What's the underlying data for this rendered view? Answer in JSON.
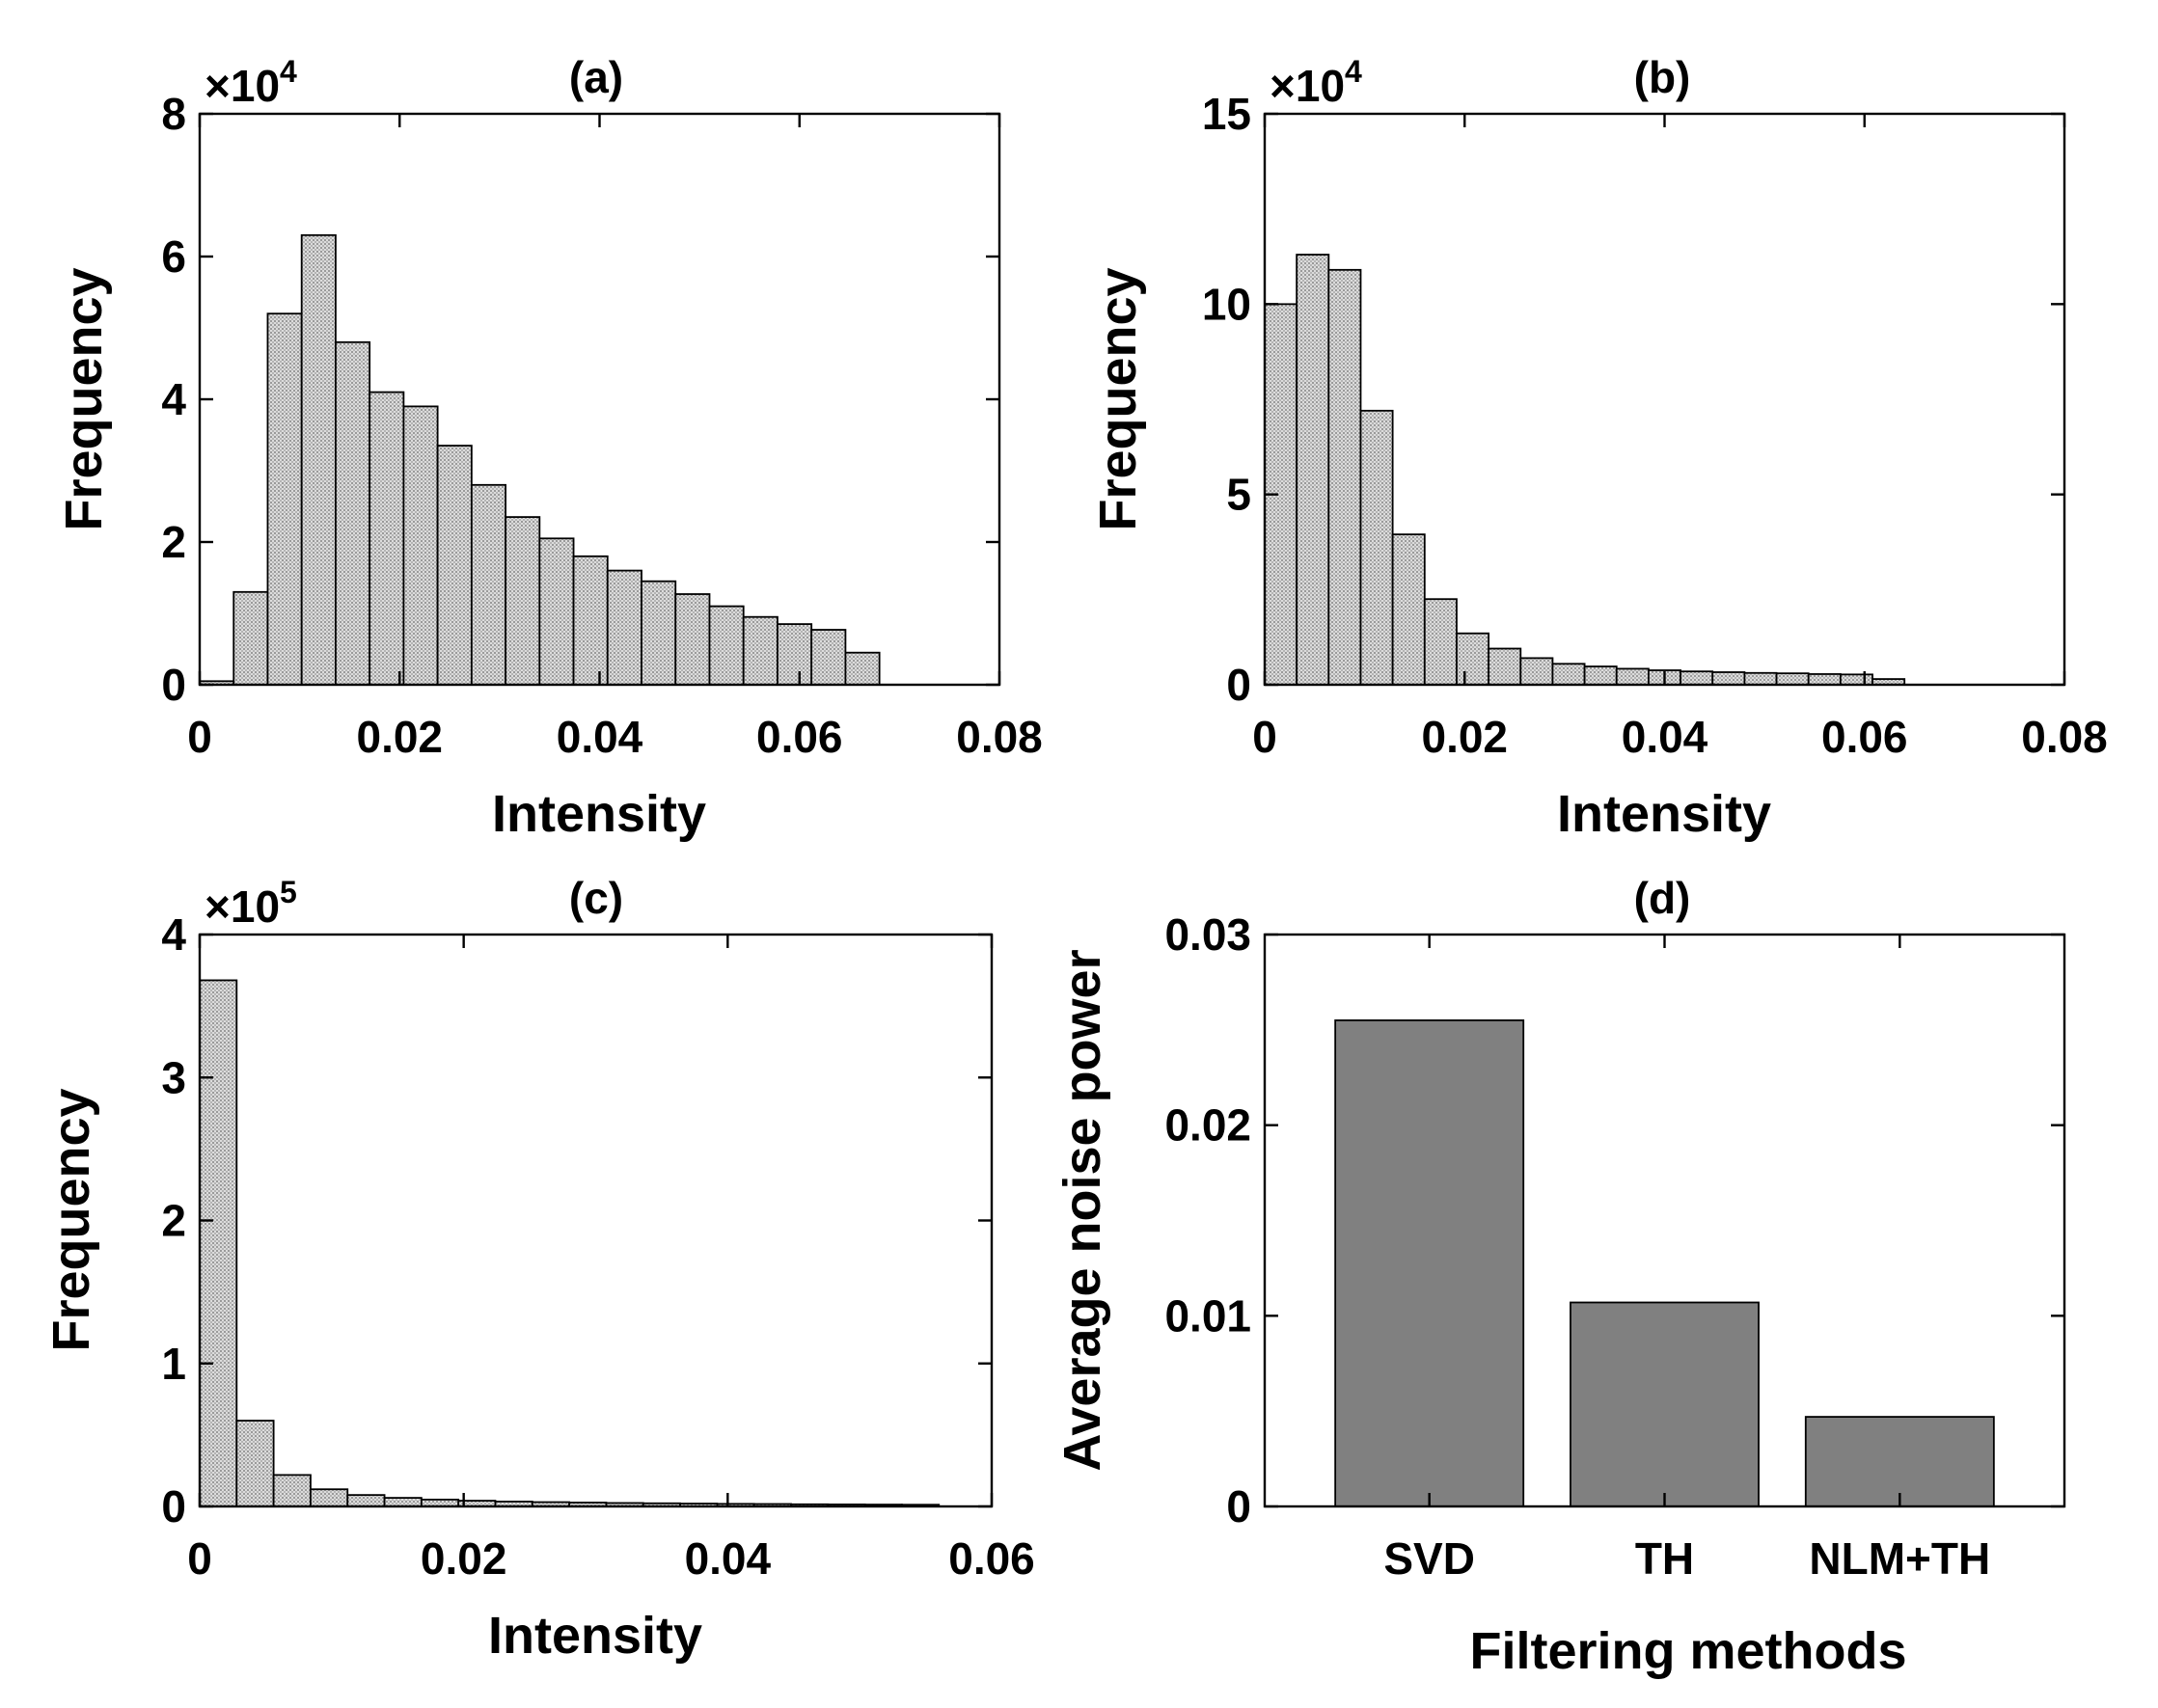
{
  "chart_data": [
    {
      "id": "a",
      "type": "bar",
      "title": "(a)",
      "xlabel": "Intensity",
      "ylabel": "Frequency",
      "exponent": "×10",
      "exponent_power": "4",
      "xlim": [
        0,
        0.08
      ],
      "ylim": [
        0,
        8
      ],
      "xticks": [
        0,
        0.02,
        0.04,
        0.06,
        0.08
      ],
      "xtick_labels": [
        "0",
        "0.02",
        "0.04",
        "0.06",
        "0.08"
      ],
      "yticks": [
        0,
        2,
        4,
        6,
        8
      ],
      "ytick_labels": [
        "0",
        "2",
        "4",
        "6",
        "8"
      ],
      "bin_start": 0.0,
      "bin_width": 0.0034,
      "values": [
        0.05,
        1.3,
        5.2,
        6.3,
        4.8,
        4.1,
        3.9,
        3.35,
        2.8,
        2.35,
        2.05,
        1.8,
        1.6,
        1.45,
        1.27,
        1.1,
        0.95,
        0.85,
        0.77,
        0.45
      ]
    },
    {
      "id": "b",
      "type": "bar",
      "title": "(b)",
      "xlabel": "Intensity",
      "ylabel": "Frequency",
      "exponent": "×10",
      "exponent_power": "4",
      "xlim": [
        0,
        0.08
      ],
      "ylim": [
        0,
        15
      ],
      "xticks": [
        0,
        0.02,
        0.04,
        0.06,
        0.08
      ],
      "xtick_labels": [
        "0",
        "0.02",
        "0.04",
        "0.06",
        "0.08"
      ],
      "yticks": [
        0,
        5,
        10,
        15
      ],
      "ytick_labels": [
        "0",
        "5",
        "10",
        "15"
      ],
      "bin_start": 0.0,
      "bin_width": 0.0032,
      "values": [
        10.0,
        11.3,
        10.9,
        7.2,
        3.95,
        2.25,
        1.35,
        0.95,
        0.7,
        0.55,
        0.48,
        0.42,
        0.38,
        0.35,
        0.33,
        0.31,
        0.3,
        0.28,
        0.27,
        0.15
      ]
    },
    {
      "id": "c",
      "type": "bar",
      "title": "(c)",
      "xlabel": "Intensity",
      "ylabel": "Frequency",
      "exponent": "×10",
      "exponent_power": "5",
      "xlim": [
        0,
        0.06
      ],
      "ylim": [
        0,
        4
      ],
      "xticks": [
        0,
        0.02,
        0.04,
        0.06
      ],
      "xtick_labels": [
        "0",
        "0.02",
        "0.04",
        "0.06"
      ],
      "yticks": [
        0,
        1,
        2,
        3,
        4
      ],
      "ytick_labels": [
        "0",
        "1",
        "2",
        "3",
        "4"
      ],
      "bin_start": 0.0,
      "bin_width": 0.0028,
      "values": [
        3.68,
        0.6,
        0.22,
        0.12,
        0.08,
        0.06,
        0.048,
        0.04,
        0.034,
        0.03,
        0.027,
        0.024,
        0.022,
        0.02,
        0.018,
        0.017,
        0.015,
        0.014,
        0.013,
        0.012
      ]
    },
    {
      "id": "d",
      "type": "bar",
      "title": "(d)",
      "xlabel": "Filtering methods",
      "ylabel": "Average noise power",
      "xlim": [
        0.3,
        3.7
      ],
      "ylim": [
        0,
        0.03
      ],
      "yticks": [
        0,
        0.01,
        0.02,
        0.03
      ],
      "ytick_labels": [
        "0",
        "0.01",
        "0.02",
        "0.03"
      ],
      "categories": [
        "SVD",
        "TH",
        "NLM+TH"
      ],
      "values": [
        0.0255,
        0.0107,
        0.0047
      ]
    }
  ]
}
